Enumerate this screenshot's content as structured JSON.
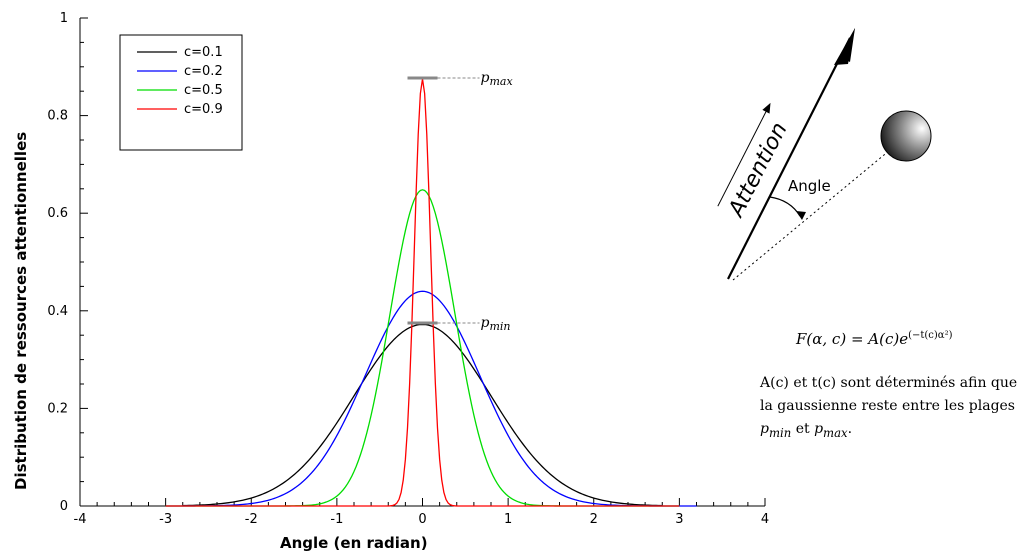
{
  "chart_data": {
    "type": "line",
    "title": "",
    "xlabel": "Angle (en radian)",
    "ylabel": "Distribution de ressources attentionnelles",
    "xlim": [
      -4,
      4
    ],
    "ylim": [
      0,
      1
    ],
    "x_ticks": [
      "-4",
      "-3",
      "-2",
      "-1",
      "0",
      "1",
      "2",
      "3",
      "4"
    ],
    "y_ticks": [
      "0",
      "0.2",
      "0.4",
      "0.6",
      "0.8",
      "1"
    ],
    "legend_position": "top-left",
    "series": [
      {
        "name": "c=0.1",
        "color": "#000000",
        "peak": 0.372,
        "sigma": 0.8,
        "x_range": [
          -2.8,
          2.8
        ]
      },
      {
        "name": "c=0.2",
        "color": "#0000ff",
        "peak": 0.44,
        "sigma": 0.67,
        "x_range": [
          -3.0,
          3.2
        ]
      },
      {
        "name": "c=0.5",
        "color": "#00dd00",
        "peak": 0.648,
        "sigma": 0.38,
        "x_range": [
          -3.0,
          3.0
        ]
      },
      {
        "name": "c=0.9",
        "color": "#ff0000",
        "peak": 0.875,
        "sigma": 0.095,
        "x_range": [
          -3.0,
          3.0
        ]
      }
    ],
    "annotations": [
      {
        "label_main": "p",
        "label_sub": "max",
        "y": 0.877
      },
      {
        "label_main": "p",
        "label_sub": "min",
        "y": 0.375
      }
    ]
  },
  "diagram": {
    "attention_label": "Attention",
    "angle_label": "Angle"
  },
  "formula": {
    "lhs": "F(α, c) = A(c)e",
    "exponent": "(−t(c)α²)"
  },
  "note": {
    "text_a": "A(c) et t(c) sont déterminés afin que la gaussienne reste entre les plages ",
    "pmin_main": "p",
    "pmin_sub": "min",
    "mid": " et ",
    "pmax_main": "p",
    "pmax_sub": "max",
    "end": "."
  }
}
